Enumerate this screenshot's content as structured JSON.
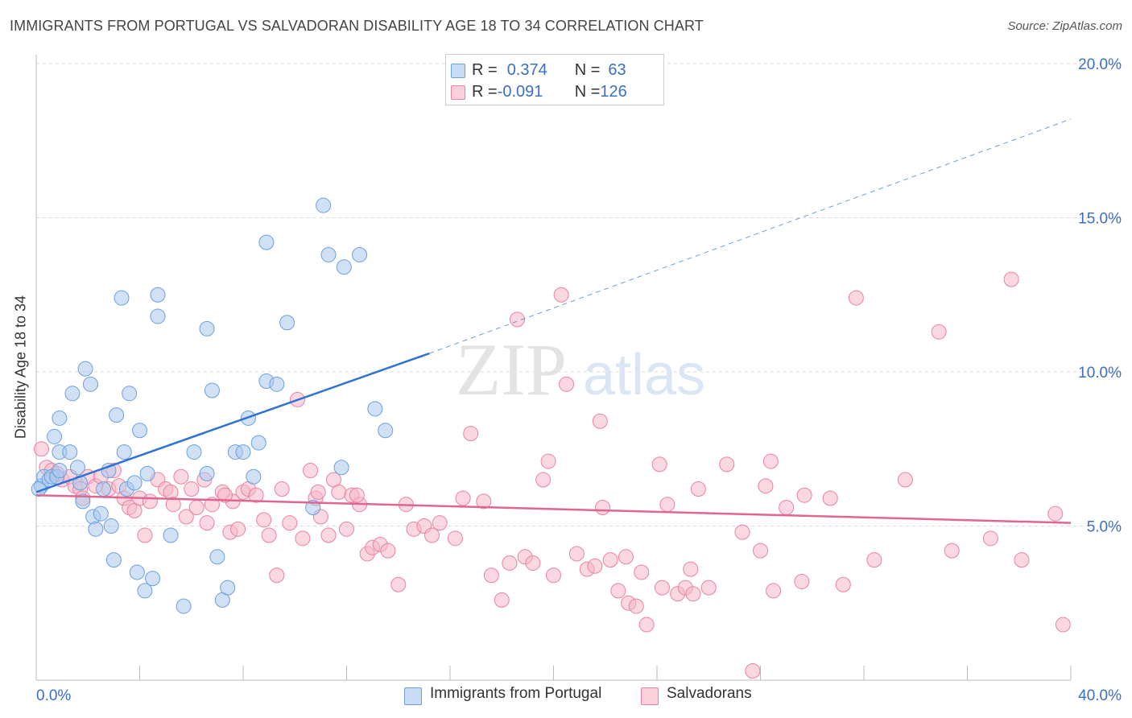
{
  "title": "IMMIGRANTS FROM PORTUGAL VS SALVADORAN DISABILITY AGE 18 TO 34 CORRELATION CHART",
  "source": "Source: ZipAtlas.com",
  "watermark": {
    "zip": "ZIP",
    "atlas": "atlas"
  },
  "legend": {
    "rows": [
      {
        "r_label": "R = ",
        "r_value": "0.374",
        "n_label": "N = ",
        "n_value": "63",
        "color": "#a9c8ef"
      },
      {
        "r_label": "R = ",
        "r_value": "-0.091",
        "n_label": "N = ",
        "n_value": "126",
        "color": "#f6b6c9"
      }
    ]
  },
  "chart_data": {
    "type": "scatter",
    "title": "IMMIGRANTS FROM PORTUGAL VS SALVADORAN DISABILITY AGE 18 TO 34 CORRELATION CHART",
    "xlabel": "",
    "ylabel": "Disability Age 18 to 34",
    "xlim": [
      0,
      40
    ],
    "ylim": [
      0,
      20
    ],
    "x_tick_labels": [
      "0.0%",
      "40.0%"
    ],
    "y_ticks": [
      5,
      10,
      15,
      20
    ],
    "y_tick_labels": [
      "5.0%",
      "10.0%",
      "15.0%",
      "20.0%"
    ],
    "grid": true,
    "legend_position": "bottom",
    "series": [
      {
        "name": "Immigrants from Portugal",
        "color": "#6a9fe0",
        "fill": "#a9c8ef",
        "trend": {
          "x": [
            0,
            15.2
          ],
          "y": [
            6.1,
            10.6
          ],
          "dashed_to": [
            40,
            18.2
          ],
          "color": "#2f72d4"
        },
        "points": [
          [
            0.2,
            6.3
          ],
          [
            0.3,
            6.6
          ],
          [
            0.5,
            6.5
          ],
          [
            0.6,
            6.6
          ],
          [
            0.8,
            6.6
          ],
          [
            0.9,
            6.8
          ],
          [
            0.9,
            7.4
          ],
          [
            0.7,
            7.9
          ],
          [
            0.9,
            8.5
          ],
          [
            1.4,
            9.3
          ],
          [
            1.3,
            7.4
          ],
          [
            1.6,
            6.9
          ],
          [
            1.7,
            6.4
          ],
          [
            1.8,
            5.8
          ],
          [
            1.9,
            10.1
          ],
          [
            2.1,
            9.6
          ],
          [
            2.2,
            5.3
          ],
          [
            2.3,
            4.9
          ],
          [
            2.5,
            5.4
          ],
          [
            2.6,
            6.2
          ],
          [
            2.8,
            6.8
          ],
          [
            2.9,
            5.0
          ],
          [
            3.0,
            3.9
          ],
          [
            3.1,
            8.6
          ],
          [
            3.3,
            12.4
          ],
          [
            3.4,
            7.4
          ],
          [
            3.5,
            6.2
          ],
          [
            3.6,
            9.3
          ],
          [
            3.8,
            6.4
          ],
          [
            3.9,
            3.5
          ],
          [
            4.0,
            8.1
          ],
          [
            4.2,
            2.9
          ],
          [
            4.3,
            6.7
          ],
          [
            4.5,
            3.3
          ],
          [
            4.7,
            11.8
          ],
          [
            4.7,
            12.5
          ],
          [
            5.2,
            4.7
          ],
          [
            5.7,
            2.4
          ],
          [
            6.1,
            7.4
          ],
          [
            6.6,
            6.7
          ],
          [
            6.6,
            11.4
          ],
          [
            6.8,
            9.4
          ],
          [
            7.0,
            4.0
          ],
          [
            7.2,
            2.6
          ],
          [
            7.4,
            3.0
          ],
          [
            7.7,
            7.4
          ],
          [
            8.0,
            7.4
          ],
          [
            8.2,
            8.5
          ],
          [
            8.4,
            6.6
          ],
          [
            8.6,
            7.7
          ],
          [
            8.9,
            14.2
          ],
          [
            8.9,
            9.7
          ],
          [
            9.3,
            9.6
          ],
          [
            9.7,
            11.6
          ],
          [
            10.7,
            5.6
          ],
          [
            11.1,
            15.4
          ],
          [
            11.3,
            13.8
          ],
          [
            11.9,
            13.4
          ],
          [
            11.8,
            6.9
          ],
          [
            12.5,
            13.8
          ],
          [
            13.1,
            8.8
          ],
          [
            13.5,
            8.1
          ],
          [
            0.1,
            6.2
          ]
        ]
      },
      {
        "name": "Salvadorans",
        "color": "#e8839f",
        "fill": "#f6b6c9",
        "trend": {
          "x": [
            0,
            40
          ],
          "y": [
            6.0,
            5.1
          ],
          "color": "#e0668f"
        },
        "points": [
          [
            0.2,
            7.5
          ],
          [
            0.4,
            6.9
          ],
          [
            0.6,
            6.8
          ],
          [
            0.8,
            6.7
          ],
          [
            1.0,
            6.5
          ],
          [
            1.3,
            6.6
          ],
          [
            1.5,
            6.3
          ],
          [
            1.7,
            6.2
          ],
          [
            1.8,
            5.9
          ],
          [
            2.0,
            6.6
          ],
          [
            2.3,
            6.3
          ],
          [
            2.5,
            6.6
          ],
          [
            2.8,
            6.2
          ],
          [
            3.0,
            6.8
          ],
          [
            3.2,
            6.3
          ],
          [
            3.4,
            5.9
          ],
          [
            3.6,
            5.6
          ],
          [
            3.8,
            5.5
          ],
          [
            4.0,
            5.9
          ],
          [
            4.2,
            4.7
          ],
          [
            4.4,
            5.8
          ],
          [
            4.7,
            6.5
          ],
          [
            5.0,
            6.2
          ],
          [
            5.2,
            6.1
          ],
          [
            5.3,
            5.7
          ],
          [
            5.6,
            6.6
          ],
          [
            5.8,
            5.3
          ],
          [
            6.0,
            6.2
          ],
          [
            6.2,
            5.6
          ],
          [
            6.5,
            6.5
          ],
          [
            6.6,
            5.1
          ],
          [
            6.8,
            5.7
          ],
          [
            7.2,
            6.1
          ],
          [
            7.5,
            4.8
          ],
          [
            7.6,
            5.8
          ],
          [
            7.8,
            4.9
          ],
          [
            8.0,
            6.1
          ],
          [
            8.2,
            6.2
          ],
          [
            8.5,
            6.0
          ],
          [
            8.8,
            5.2
          ],
          [
            9.0,
            4.7
          ],
          [
            9.3,
            3.4
          ],
          [
            9.5,
            6.2
          ],
          [
            9.8,
            5.1
          ],
          [
            10.1,
            9.1
          ],
          [
            10.3,
            4.6
          ],
          [
            10.6,
            6.8
          ],
          [
            10.8,
            5.9
          ],
          [
            10.9,
            6.1
          ],
          [
            11.0,
            5.3
          ],
          [
            11.3,
            4.7
          ],
          [
            11.5,
            6.5
          ],
          [
            11.7,
            6.1
          ],
          [
            12.0,
            4.9
          ],
          [
            12.2,
            6.0
          ],
          [
            12.5,
            5.7
          ],
          [
            12.8,
            4.1
          ],
          [
            13.0,
            4.3
          ],
          [
            13.3,
            4.4
          ],
          [
            13.6,
            4.2
          ],
          [
            14.0,
            3.1
          ],
          [
            14.3,
            5.7
          ],
          [
            14.6,
            4.9
          ],
          [
            15.0,
            5.0
          ],
          [
            15.3,
            4.7
          ],
          [
            15.6,
            5.1
          ],
          [
            16.2,
            4.6
          ],
          [
            16.5,
            5.9
          ],
          [
            16.8,
            8.0
          ],
          [
            17.3,
            5.8
          ],
          [
            17.6,
            3.4
          ],
          [
            18.0,
            2.6
          ],
          [
            18.3,
            3.8
          ],
          [
            18.6,
            11.7
          ],
          [
            18.9,
            4.0
          ],
          [
            19.2,
            3.8
          ],
          [
            19.6,
            6.5
          ],
          [
            19.8,
            7.1
          ],
          [
            20.0,
            3.4
          ],
          [
            20.3,
            12.5
          ],
          [
            20.5,
            9.6
          ],
          [
            20.9,
            4.1
          ],
          [
            21.3,
            3.6
          ],
          [
            21.6,
            3.7
          ],
          [
            21.8,
            8.4
          ],
          [
            21.9,
            5.6
          ],
          [
            22.2,
            3.9
          ],
          [
            22.5,
            2.9
          ],
          [
            22.8,
            4.0
          ],
          [
            22.9,
            2.5
          ],
          [
            23.2,
            2.4
          ],
          [
            23.4,
            3.5
          ],
          [
            23.6,
            1.8
          ],
          [
            24.1,
            7.0
          ],
          [
            24.2,
            3.0
          ],
          [
            24.4,
            5.7
          ],
          [
            24.8,
            2.8
          ],
          [
            25.1,
            3.0
          ],
          [
            25.3,
            3.6
          ],
          [
            25.4,
            2.8
          ],
          [
            25.6,
            6.2
          ],
          [
            26.0,
            3.0
          ],
          [
            26.7,
            7.0
          ],
          [
            27.3,
            4.8
          ],
          [
            27.7,
            0.3
          ],
          [
            28.0,
            4.2
          ],
          [
            28.2,
            6.3
          ],
          [
            28.4,
            7.1
          ],
          [
            28.5,
            2.9
          ],
          [
            29.0,
            5.6
          ],
          [
            29.6,
            3.2
          ],
          [
            29.7,
            6.0
          ],
          [
            30.7,
            5.9
          ],
          [
            31.2,
            3.1
          ],
          [
            31.7,
            12.4
          ],
          [
            32.4,
            3.9
          ],
          [
            33.6,
            6.5
          ],
          [
            34.9,
            11.3
          ],
          [
            35.4,
            4.2
          ],
          [
            36.9,
            4.6
          ],
          [
            37.7,
            13.0
          ],
          [
            38.1,
            3.9
          ],
          [
            39.4,
            5.4
          ],
          [
            39.7,
            1.8
          ],
          [
            12.4,
            6.0
          ],
          [
            7.3,
            6.0
          ]
        ]
      }
    ]
  }
}
